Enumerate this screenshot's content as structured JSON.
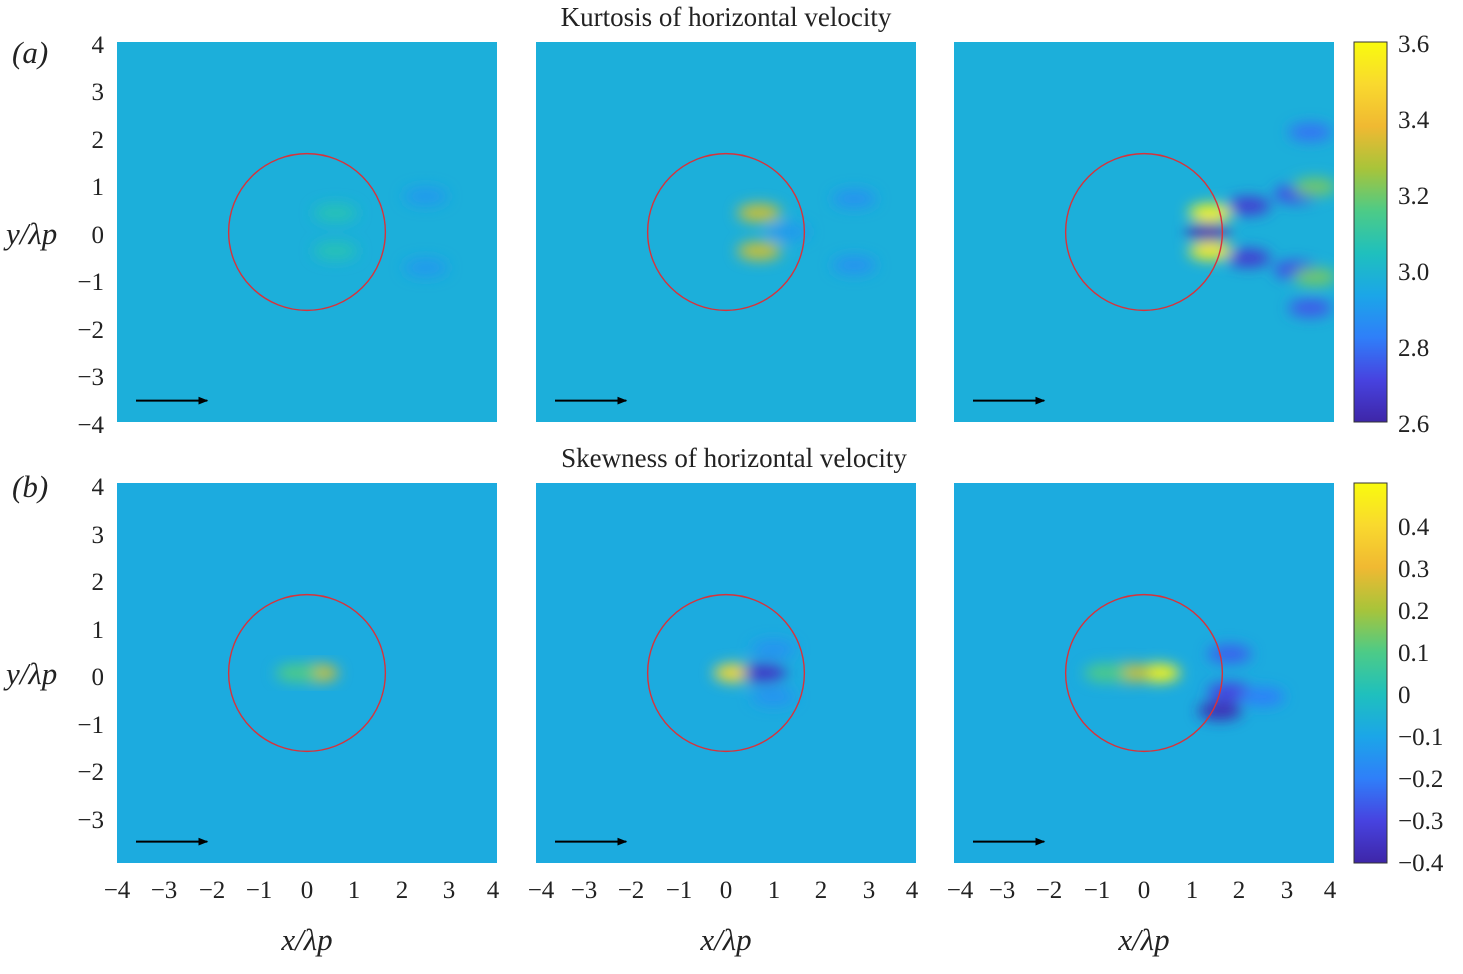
{
  "colors": {
    "background_field": "#1f97e4",
    "circle": "#d8323a",
    "arrow": "#000000",
    "colormap": [
      "#3e26a8",
      "#4743e0",
      "#2f7ff9",
      "#1ba6e8",
      "#1fc0bd",
      "#4dcb87",
      "#a8c43a",
      "#f0b932",
      "#f9d92e",
      "#f9fb0e"
    ]
  },
  "chart_data": [
    {
      "type": "heatmap",
      "row_label": "(a)",
      "title": "Kurtosis of horizontal velocity",
      "ylabel": "y/λp",
      "xlabel": "",
      "xlim": [
        -4,
        4
      ],
      "ylim": [
        -4,
        4
      ],
      "y_ticks": [
        "4",
        "3",
        "2",
        "1",
        "0",
        "−1",
        "−2",
        "−3",
        "−4"
      ],
      "colorbar": {
        "min": 2.6,
        "max": 3.6,
        "ticks": [
          "3.6",
          "3.4",
          "3.2",
          "3.0",
          "2.8",
          "2.6"
        ]
      },
      "background_value": 2.97,
      "circle": {
        "center": [
          0,
          0
        ],
        "radius": 1.65
      },
      "arrow": {
        "from": [
          -3.6,
          -3.55
        ],
        "to": [
          -2.1,
          -3.55
        ]
      },
      "panels": [
        {
          "features": [
            {
              "x": 0.6,
              "y": 0.4,
              "value": 3.06
            },
            {
              "x": 0.6,
              "y": -0.4,
              "value": 3.06
            },
            {
              "x": 2.5,
              "y": 0.75,
              "value": 2.9
            },
            {
              "x": 2.5,
              "y": -0.75,
              "value": 2.9
            }
          ]
        },
        {
          "features": [
            {
              "x": 0.7,
              "y": 0.4,
              "value": 3.32
            },
            {
              "x": 0.7,
              "y": -0.4,
              "value": 3.32
            },
            {
              "x": 1.3,
              "y": 0.0,
              "value": 2.9
            },
            {
              "x": 2.7,
              "y": 0.7,
              "value": 2.88
            },
            {
              "x": 2.7,
              "y": -0.7,
              "value": 2.88
            }
          ]
        },
        {
          "features": [
            {
              "x": 1.4,
              "y": 0.4,
              "value": 3.58
            },
            {
              "x": 1.4,
              "y": -0.4,
              "value": 3.55
            },
            {
              "x": 1.35,
              "y": 0.0,
              "value": 2.62
            },
            {
              "x": 2.2,
              "y": 0.55,
              "value": 2.68
            },
            {
              "x": 2.2,
              "y": -0.55,
              "value": 2.68
            },
            {
              "x": 3.2,
              "y": 0.8,
              "value": 2.72
            },
            {
              "x": 3.2,
              "y": -0.8,
              "value": 2.72
            },
            {
              "x": 3.6,
              "y": 0.95,
              "value": 3.2
            },
            {
              "x": 3.6,
              "y": -0.95,
              "value": 3.2
            },
            {
              "x": 3.5,
              "y": 2.1,
              "value": 2.8
            },
            {
              "x": 3.5,
              "y": -1.6,
              "value": 2.75
            }
          ]
        }
      ]
    },
    {
      "type": "heatmap",
      "row_label": "(b)",
      "title": "Skewness of horizontal velocity",
      "ylabel": "y/λp",
      "xlabel": "x/λp",
      "xlim": [
        -4,
        4
      ],
      "ylim": [
        -4,
        4
      ],
      "x_ticks_first_panel": [
        "−4",
        "−3",
        "−2",
        "−1",
        "0",
        "1",
        "2",
        "3",
        "4"
      ],
      "x_ticks": [
        "−4",
        "−3",
        "−2",
        "−1",
        "0",
        "1",
        "2",
        "3",
        "4"
      ],
      "y_ticks": [
        "4",
        "3",
        "2",
        "1",
        "0",
        "−1",
        "−2",
        "−3"
      ],
      "colorbar": {
        "min": -0.4,
        "max": 0.5,
        "ticks": [
          "0.4",
          "0.3",
          "0.2",
          "0.1",
          "0",
          "−0.1",
          "−0.2",
          "−0.3",
          "−0.4"
        ]
      },
      "background_value": -0.08,
      "circle": {
        "center": [
          0,
          0
        ],
        "radius": 1.65
      },
      "arrow": {
        "from": [
          -3.6,
          -3.55
        ],
        "to": [
          -2.1,
          -3.55
        ]
      },
      "panels": [
        {
          "features": [
            {
              "x": 0.2,
              "y": 0.0,
              "value": 0.25
            },
            {
              "x": -0.2,
              "y": 0.0,
              "value": 0.1
            }
          ]
        },
        {
          "features": [
            {
              "x": 0.2,
              "y": 0.0,
              "value": 0.4
            },
            {
              "x": 0.8,
              "y": 0.0,
              "value": -0.35
            },
            {
              "x": 1.0,
              "y": 0.5,
              "value": -0.15
            },
            {
              "x": 1.0,
              "y": -0.5,
              "value": -0.15
            }
          ]
        },
        {
          "features": [
            {
              "x": 0.3,
              "y": 0.0,
              "value": 0.48
            },
            {
              "x": -0.3,
              "y": 0.0,
              "value": 0.25
            },
            {
              "x": -0.8,
              "y": 0.0,
              "value": 0.1
            },
            {
              "x": 1.8,
              "y": 0.4,
              "value": -0.25
            },
            {
              "x": 1.8,
              "y": -0.4,
              "value": -0.3
            },
            {
              "x": 2.5,
              "y": -0.5,
              "value": -0.2
            },
            {
              "x": 1.6,
              "y": -0.8,
              "value": -0.38
            }
          ]
        }
      ]
    }
  ]
}
